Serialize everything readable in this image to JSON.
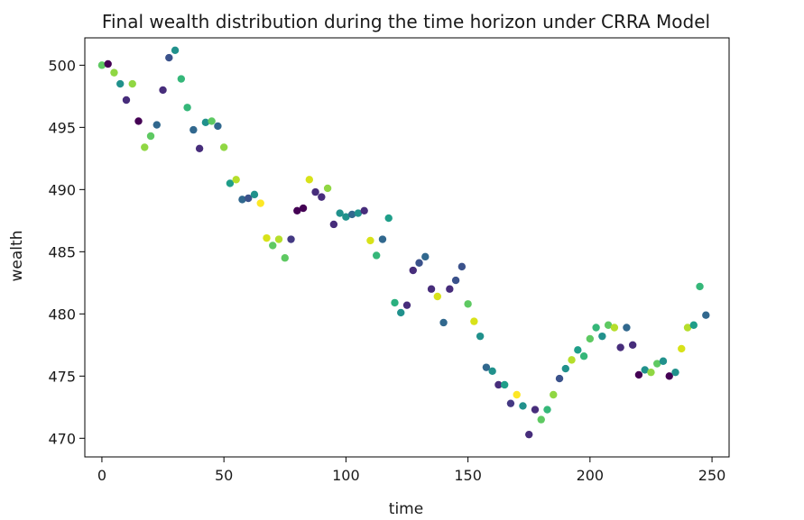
{
  "chart_data": {
    "type": "scatter",
    "title": "Final wealth distribution during the time horizon under CRRA Model",
    "xlabel": "time",
    "ylabel": "wealth",
    "xlim": [
      -7,
      257
    ],
    "ylim": [
      468.5,
      502.2
    ],
    "xticks": [
      0,
      50,
      100,
      150,
      200,
      250
    ],
    "yticks": [
      470,
      475,
      480,
      485,
      490,
      495,
      500
    ],
    "grid": false,
    "colormap": "viridis",
    "points": [
      {
        "x": 0,
        "y": 500.0,
        "color": "#5ec962"
      },
      {
        "x": 2.5,
        "y": 500.1,
        "color": "#440154"
      },
      {
        "x": 5,
        "y": 499.4,
        "color": "#90d743"
      },
      {
        "x": 7.5,
        "y": 498.5,
        "color": "#21918c"
      },
      {
        "x": 10,
        "y": 497.2,
        "color": "#472d7b"
      },
      {
        "x": 12.5,
        "y": 498.5,
        "color": "#90d743"
      },
      {
        "x": 15,
        "y": 495.5,
        "color": "#440154"
      },
      {
        "x": 17.5,
        "y": 493.4,
        "color": "#90d743"
      },
      {
        "x": 20,
        "y": 494.3,
        "color": "#5ec962"
      },
      {
        "x": 22.5,
        "y": 495.2,
        "color": "#31688e"
      },
      {
        "x": 25,
        "y": 498.0,
        "color": "#472d7b"
      },
      {
        "x": 27.5,
        "y": 500.6,
        "color": "#3b528b"
      },
      {
        "x": 30,
        "y": 501.2,
        "color": "#21918c"
      },
      {
        "x": 32.5,
        "y": 498.9,
        "color": "#35b779"
      },
      {
        "x": 35,
        "y": 496.6,
        "color": "#35b779"
      },
      {
        "x": 37.5,
        "y": 494.8,
        "color": "#31688e"
      },
      {
        "x": 40,
        "y": 493.3,
        "color": "#472d7b"
      },
      {
        "x": 42.5,
        "y": 495.4,
        "color": "#21918c"
      },
      {
        "x": 45,
        "y": 495.5,
        "color": "#5ec962"
      },
      {
        "x": 47.5,
        "y": 495.1,
        "color": "#31688e"
      },
      {
        "x": 50,
        "y": 493.4,
        "color": "#90d743"
      },
      {
        "x": 52.5,
        "y": 490.5,
        "color": "#1f9e89"
      },
      {
        "x": 55,
        "y": 490.8,
        "color": "#b5de2b"
      },
      {
        "x": 57.5,
        "y": 489.2,
        "color": "#31688e"
      },
      {
        "x": 60,
        "y": 489.3,
        "color": "#3b528b"
      },
      {
        "x": 62.5,
        "y": 489.6,
        "color": "#21918c"
      },
      {
        "x": 65,
        "y": 488.9,
        "color": "#fde725"
      },
      {
        "x": 67.5,
        "y": 486.1,
        "color": "#d8e219"
      },
      {
        "x": 70,
        "y": 485.5,
        "color": "#5ec962"
      },
      {
        "x": 72.5,
        "y": 486.0,
        "color": "#b5de2b"
      },
      {
        "x": 75,
        "y": 484.5,
        "color": "#5ec962"
      },
      {
        "x": 77.5,
        "y": 486.0,
        "color": "#443983"
      },
      {
        "x": 80,
        "y": 488.3,
        "color": "#440154"
      },
      {
        "x": 82.5,
        "y": 488.5,
        "color": "#440154"
      },
      {
        "x": 85,
        "y": 490.8,
        "color": "#d8e219"
      },
      {
        "x": 87.5,
        "y": 489.8,
        "color": "#472d7b"
      },
      {
        "x": 90,
        "y": 489.4,
        "color": "#472d7b"
      },
      {
        "x": 92.5,
        "y": 490.1,
        "color": "#90d743"
      },
      {
        "x": 95,
        "y": 487.2,
        "color": "#472d7b"
      },
      {
        "x": 97.5,
        "y": 488.1,
        "color": "#21918c"
      },
      {
        "x": 100,
        "y": 487.8,
        "color": "#21918c"
      },
      {
        "x": 102.5,
        "y": 488.0,
        "color": "#31688e"
      },
      {
        "x": 105,
        "y": 488.1,
        "color": "#21918c"
      },
      {
        "x": 107.5,
        "y": 488.3,
        "color": "#472d7b"
      },
      {
        "x": 110,
        "y": 485.9,
        "color": "#d8e219"
      },
      {
        "x": 112.5,
        "y": 484.7,
        "color": "#35b779"
      },
      {
        "x": 115,
        "y": 486.0,
        "color": "#31688e"
      },
      {
        "x": 117.5,
        "y": 487.7,
        "color": "#1f9e89"
      },
      {
        "x": 120,
        "y": 480.9,
        "color": "#2ab07f"
      },
      {
        "x": 122.5,
        "y": 480.1,
        "color": "#21918c"
      },
      {
        "x": 125,
        "y": 480.7,
        "color": "#472d7b"
      },
      {
        "x": 127.5,
        "y": 483.5,
        "color": "#472d7b"
      },
      {
        "x": 130,
        "y": 484.1,
        "color": "#3b528b"
      },
      {
        "x": 132.5,
        "y": 484.6,
        "color": "#31688e"
      },
      {
        "x": 135,
        "y": 482.0,
        "color": "#472d7b"
      },
      {
        "x": 137.5,
        "y": 481.4,
        "color": "#d8e219"
      },
      {
        "x": 140,
        "y": 479.3,
        "color": "#31688e"
      },
      {
        "x": 142.5,
        "y": 482.0,
        "color": "#472d7b"
      },
      {
        "x": 145,
        "y": 482.7,
        "color": "#3b528b"
      },
      {
        "x": 147.5,
        "y": 483.8,
        "color": "#3b528b"
      },
      {
        "x": 150,
        "y": 480.8,
        "color": "#5ec962"
      },
      {
        "x": 152.5,
        "y": 479.4,
        "color": "#d8e219"
      },
      {
        "x": 155,
        "y": 478.2,
        "color": "#21918c"
      },
      {
        "x": 157.5,
        "y": 475.7,
        "color": "#31688e"
      },
      {
        "x": 160,
        "y": 475.4,
        "color": "#21918c"
      },
      {
        "x": 162.5,
        "y": 474.3,
        "color": "#472d7b"
      },
      {
        "x": 165,
        "y": 474.3,
        "color": "#1f9e89"
      },
      {
        "x": 167.5,
        "y": 472.8,
        "color": "#443983"
      },
      {
        "x": 170,
        "y": 473.5,
        "color": "#fde725"
      },
      {
        "x": 172.5,
        "y": 472.6,
        "color": "#21918c"
      },
      {
        "x": 175,
        "y": 470.3,
        "color": "#472d7b"
      },
      {
        "x": 177.5,
        "y": 472.3,
        "color": "#472d7b"
      },
      {
        "x": 180,
        "y": 471.5,
        "color": "#5ec962"
      },
      {
        "x": 182.5,
        "y": 472.3,
        "color": "#35b779"
      },
      {
        "x": 185,
        "y": 473.5,
        "color": "#90d743"
      },
      {
        "x": 187.5,
        "y": 474.8,
        "color": "#3b528b"
      },
      {
        "x": 190,
        "y": 475.6,
        "color": "#21918c"
      },
      {
        "x": 192.5,
        "y": 476.3,
        "color": "#b5de2b"
      },
      {
        "x": 195,
        "y": 477.1,
        "color": "#1f9e89"
      },
      {
        "x": 197.5,
        "y": 476.6,
        "color": "#35b779"
      },
      {
        "x": 200,
        "y": 478.0,
        "color": "#5ec962"
      },
      {
        "x": 202.5,
        "y": 478.9,
        "color": "#35b779"
      },
      {
        "x": 205,
        "y": 478.2,
        "color": "#21918c"
      },
      {
        "x": 207.5,
        "y": 479.1,
        "color": "#5ec962"
      },
      {
        "x": 210,
        "y": 478.9,
        "color": "#b5de2b"
      },
      {
        "x": 212.5,
        "y": 477.3,
        "color": "#472d7b"
      },
      {
        "x": 215,
        "y": 478.9,
        "color": "#31688e"
      },
      {
        "x": 217.5,
        "y": 477.5,
        "color": "#472d7b"
      },
      {
        "x": 220,
        "y": 475.1,
        "color": "#440154"
      },
      {
        "x": 222.5,
        "y": 475.5,
        "color": "#21918c"
      },
      {
        "x": 225,
        "y": 475.3,
        "color": "#90d743"
      },
      {
        "x": 227.5,
        "y": 476.0,
        "color": "#5ec962"
      },
      {
        "x": 230,
        "y": 476.2,
        "color": "#21918c"
      },
      {
        "x": 232.5,
        "y": 475.0,
        "color": "#440154"
      },
      {
        "x": 235,
        "y": 475.3,
        "color": "#21918c"
      },
      {
        "x": 237.5,
        "y": 477.2,
        "color": "#d8e219"
      },
      {
        "x": 240,
        "y": 478.9,
        "color": "#b5de2b"
      },
      {
        "x": 242.5,
        "y": 479.1,
        "color": "#1f9e89"
      },
      {
        "x": 245,
        "y": 482.2,
        "color": "#35b779"
      },
      {
        "x": 247.5,
        "y": 479.9,
        "color": "#31688e"
      }
    ]
  }
}
